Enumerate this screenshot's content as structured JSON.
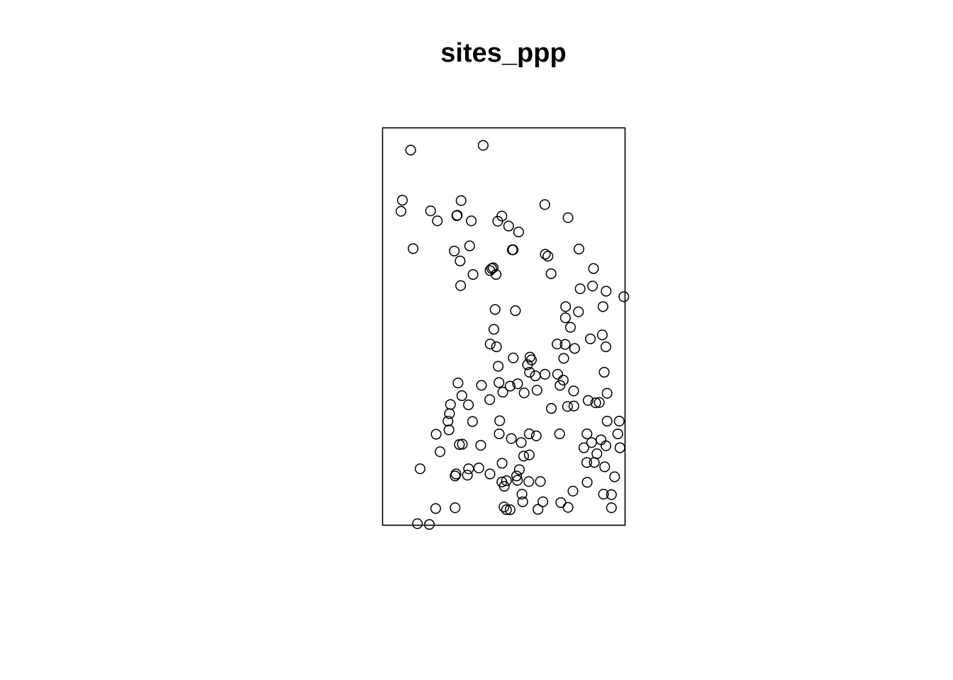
{
  "chart_data": {
    "type": "scatter",
    "title": "sites_ppp",
    "xlabel": "",
    "ylabel": "",
    "axes_shown": false,
    "grid": false,
    "window": "rectangle",
    "marker": "open-circle",
    "xlim": [
      0,
      100
    ],
    "ylim": [
      0,
      100
    ],
    "points": [
      [
        11.6,
        94.4
      ],
      [
        41.5,
        95.6
      ],
      [
        8.2,
        81.8
      ],
      [
        7.6,
        79.0
      ],
      [
        32.4,
        81.7
      ],
      [
        19.8,
        79.1
      ],
      [
        22.6,
        76.6
      ],
      [
        30.6,
        77.9
      ],
      [
        30.8,
        78.0
      ],
      [
        36.6,
        76.6
      ],
      [
        49.2,
        77.8
      ],
      [
        47.5,
        76.5
      ],
      [
        52.0,
        75.3
      ],
      [
        56.1,
        73.8
      ],
      [
        66.9,
        80.7
      ],
      [
        76.5,
        77.4
      ],
      [
        12.6,
        69.6
      ],
      [
        29.6,
        69.0
      ],
      [
        35.9,
        70.3
      ],
      [
        32.0,
        66.5
      ],
      [
        53.5,
        69.3
      ],
      [
        53.8,
        69.3
      ],
      [
        67.1,
        68.2
      ],
      [
        68.2,
        67.7
      ],
      [
        81.0,
        69.5
      ],
      [
        87.0,
        64.6
      ],
      [
        37.3,
        63.1
      ],
      [
        44.3,
        64.1
      ],
      [
        45.0,
        64.6
      ],
      [
        45.6,
        64.8
      ],
      [
        46.8,
        63.1
      ],
      [
        32.2,
        60.3
      ],
      [
        69.5,
        63.3
      ],
      [
        81.5,
        59.5
      ],
      [
        86.6,
        60.2
      ],
      [
        92.2,
        58.9
      ],
      [
        99.5,
        57.5
      ],
      [
        46.4,
        54.3
      ],
      [
        54.8,
        54.0
      ],
      [
        75.5,
        55.0
      ],
      [
        80.8,
        53.7
      ],
      [
        75.4,
        52.2
      ],
      [
        90.9,
        55.0
      ],
      [
        45.9,
        49.3
      ],
      [
        77.5,
        49.8
      ],
      [
        44.4,
        45.6
      ],
      [
        47.0,
        44.9
      ],
      [
        75.3,
        45.5
      ],
      [
        72.0,
        45.6
      ],
      [
        79.2,
        44.5
      ],
      [
        85.7,
        46.9
      ],
      [
        90.6,
        47.9
      ],
      [
        92.1,
        44.9
      ],
      [
        53.9,
        42.1
      ],
      [
        60.8,
        42.3
      ],
      [
        61.4,
        41.6
      ],
      [
        59.8,
        40.4
      ],
      [
        47.7,
        40.0
      ],
      [
        74.7,
        42.0
      ],
      [
        60.6,
        38.5
      ],
      [
        63.0,
        37.6
      ],
      [
        67.0,
        38.0
      ],
      [
        72.2,
        38.0
      ],
      [
        91.4,
        38.5
      ],
      [
        31.1,
        35.8
      ],
      [
        40.8,
        35.2
      ],
      [
        48.0,
        35.9
      ],
      [
        55.7,
        35.6
      ],
      [
        52.6,
        35.0
      ],
      [
        74.5,
        36.5
      ],
      [
        73.2,
        35.2
      ],
      [
        49.6,
        33.5
      ],
      [
        58.4,
        33.3
      ],
      [
        63.7,
        34.0
      ],
      [
        78.8,
        33.8
      ],
      [
        92.6,
        33.2
      ],
      [
        32.7,
        32.6
      ],
      [
        44.2,
        31.6
      ],
      [
        28.0,
        30.4
      ],
      [
        35.4,
        30.3
      ],
      [
        84.8,
        31.4
      ],
      [
        87.9,
        30.8
      ],
      [
        89.4,
        30.9
      ],
      [
        27.6,
        28.1
      ],
      [
        69.6,
        29.4
      ],
      [
        78.9,
        30.0
      ],
      [
        76.3,
        29.9
      ],
      [
        27.0,
        26.2
      ],
      [
        37.1,
        26.1
      ],
      [
        48.3,
        26.3
      ],
      [
        92.6,
        26.2
      ],
      [
        97.6,
        26.2
      ],
      [
        27.4,
        24.0
      ],
      [
        22.1,
        22.9
      ],
      [
        48.1,
        23.0
      ],
      [
        60.5,
        23.0
      ],
      [
        63.4,
        22.5
      ],
      [
        73.0,
        23.0
      ],
      [
        84.3,
        23.0
      ],
      [
        97.0,
        23.0
      ],
      [
        53.1,
        21.8
      ],
      [
        57.2,
        20.8
      ],
      [
        31.7,
        20.3
      ],
      [
        32.9,
        20.4
      ],
      [
        40.5,
        20.1
      ],
      [
        86.2,
        20.8
      ],
      [
        90.1,
        21.5
      ],
      [
        83.0,
        19.5
      ],
      [
        92.1,
        20.0
      ],
      [
        97.9,
        19.5
      ],
      [
        23.7,
        18.5
      ],
      [
        58.2,
        17.4
      ],
      [
        60.5,
        17.7
      ],
      [
        88.4,
        18.0
      ],
      [
        49.3,
        15.6
      ],
      [
        84.2,
        15.8
      ],
      [
        87.3,
        15.8
      ],
      [
        91.6,
        14.7
      ],
      [
        15.5,
        14.2
      ],
      [
        35.5,
        14.2
      ],
      [
        39.7,
        14.4
      ],
      [
        30.3,
        12.9
      ],
      [
        35.0,
        12.6
      ],
      [
        44.3,
        12.9
      ],
      [
        56.4,
        14.0
      ],
      [
        55.3,
        12.4
      ],
      [
        29.9,
        12.4
      ],
      [
        95.7,
        12.2
      ],
      [
        49.2,
        10.9
      ],
      [
        51.1,
        11.2
      ],
      [
        55.6,
        11.3
      ],
      [
        60.3,
        11.0
      ],
      [
        65.1,
        11.0
      ],
      [
        84.4,
        10.8
      ],
      [
        50.2,
        9.8
      ],
      [
        78.5,
        8.6
      ],
      [
        57.5,
        7.8
      ],
      [
        91.1,
        7.8
      ],
      [
        94.4,
        7.7
      ],
      [
        57.8,
        5.9
      ],
      [
        66.1,
        5.9
      ],
      [
        73.5,
        5.7
      ],
      [
        50.1,
        4.6
      ],
      [
        51.1,
        3.9
      ],
      [
        52.6,
        3.9
      ],
      [
        64.1,
        4.0
      ],
      [
        76.5,
        4.5
      ],
      [
        21.9,
        4.2
      ],
      [
        29.9,
        4.4
      ],
      [
        94.4,
        4.4
      ],
      [
        14.4,
        0.4
      ],
      [
        19.3,
        0.2
      ]
    ]
  }
}
